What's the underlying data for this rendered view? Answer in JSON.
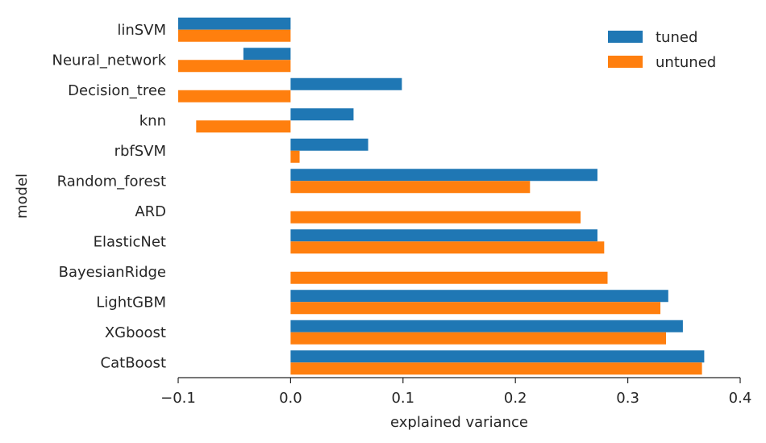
{
  "chart_data": {
    "type": "bar",
    "orientation": "horizontal",
    "categories": [
      "linSVM",
      "Neural_network",
      "Decision_tree",
      "knn",
      "rbfSVM",
      "Random_forest",
      "ARD",
      "ElasticNet",
      "BayesianRidge",
      "LightGBM",
      "XGboost",
      "CatBoost"
    ],
    "series": [
      {
        "name": "tuned",
        "color": "#1f77b4",
        "values": [
          -0.1,
          -0.042,
          0.099,
          0.056,
          0.069,
          0.273,
          null,
          0.273,
          null,
          0.336,
          0.349,
          0.368
        ]
      },
      {
        "name": "untuned",
        "color": "#ff7f0e",
        "values": [
          -0.1,
          -0.1,
          -0.1,
          -0.084,
          0.008,
          0.213,
          0.258,
          0.279,
          0.282,
          0.329,
          0.334,
          0.366
        ]
      }
    ],
    "xlabel": "explained variance",
    "ylabel": "model",
    "xlim": [
      -0.1,
      0.4
    ],
    "xticks": [
      -0.1,
      0.0,
      0.1,
      0.2,
      0.3,
      0.4
    ],
    "xtick_labels": [
      "−0.1",
      "0.0",
      "0.1",
      "0.2",
      "0.3",
      "0.4"
    ],
    "grid": false,
    "legend_position": "top-right"
  }
}
